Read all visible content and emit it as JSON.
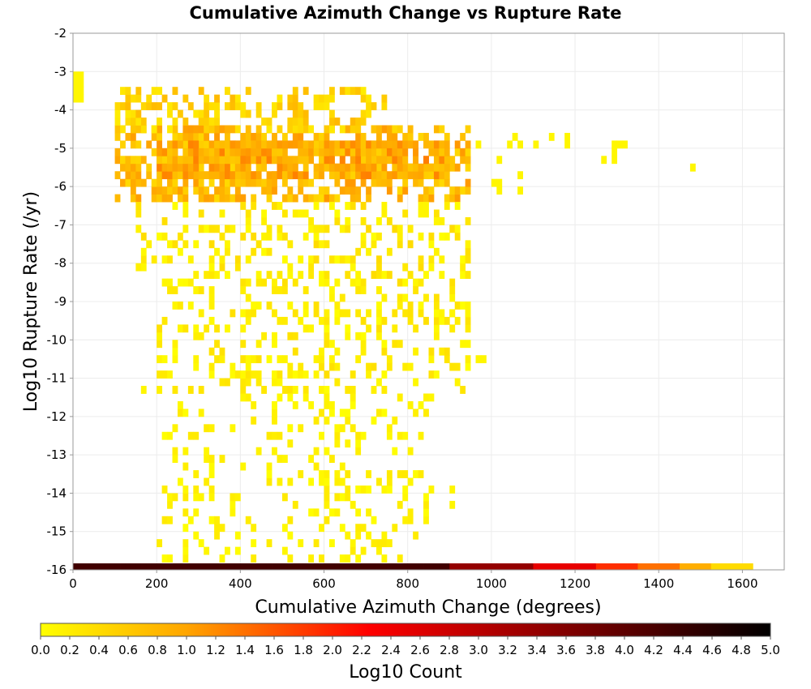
{
  "chart_data": {
    "type": "heatmap",
    "title": "Cumulative Azimuth Change vs Rupture Rate",
    "xlabel": "Cumulative Azimuth Change (degrees)",
    "ylabel": "Log10 Rupture Rate (/yr)",
    "xlim": [
      0,
      1700
    ],
    "ylim": [
      -16,
      -2
    ],
    "xticks": [
      "0",
      "200",
      "400",
      "600",
      "800",
      "1000",
      "1200",
      "1400",
      "1600"
    ],
    "yticks": [
      "-2",
      "-3",
      "-4",
      "-5",
      "-6",
      "-7",
      "-8",
      "-9",
      "-10",
      "-11",
      "-12",
      "-13",
      "-14",
      "-15",
      "-16"
    ],
    "grid": true,
    "colorbar": {
      "label": "Log10 Count",
      "range": [
        0,
        5
      ],
      "ticks": [
        "0.0",
        "0.2",
        "0.4",
        "0.6",
        "0.8",
        "1.0",
        "1.2",
        "1.4",
        "1.6",
        "1.8",
        "2.0",
        "2.2",
        "2.4",
        "2.6",
        "2.8",
        "3.0",
        "3.2",
        "3.4",
        "3.6",
        "3.8",
        "4.0",
        "4.2",
        "4.4",
        "4.6",
        "4.8",
        "5.0"
      ],
      "colors": [
        "#ffff00",
        "#ffa500",
        "#ff0000",
        "#8b0000",
        "#000000"
      ]
    },
    "bin_size": {
      "x": 12.5,
      "y": 0.2
    },
    "floor_row": {
      "y": -16,
      "segments": [
        {
          "x": [
            0,
            900
          ],
          "log10_count": 4.3
        },
        {
          "x": [
            900,
            1100
          ],
          "log10_count": 3.4
        },
        {
          "x": [
            1100,
            1250
          ],
          "log10_count": 2.5
        },
        {
          "x": [
            1250,
            1350
          ],
          "log10_count": 1.9
        },
        {
          "x": [
            1350,
            1450
          ],
          "log10_count": 1.4
        },
        {
          "x": [
            1450,
            1525
          ],
          "log10_count": 0.9
        },
        {
          "x": [
            1525,
            1625
          ],
          "log10_count": 0.4
        }
      ]
    },
    "clusters": [
      {
        "x": [
          100,
          950
        ],
        "y": [
          -6.4,
          -4.4
        ],
        "density": 0.55,
        "level": [
          0.4,
          1.1
        ],
        "seed": 11
      },
      {
        "x": [
          200,
          900
        ],
        "y": [
          -5.8,
          -4.8
        ],
        "density": 0.7,
        "level": [
          0.6,
          1.3
        ],
        "seed": 12
      },
      {
        "x": [
          100,
          750
        ],
        "y": [
          -4.6,
          -3.4
        ],
        "density": 0.4,
        "level": [
          0.2,
          0.8
        ],
        "seed": 13
      },
      {
        "x": [
          150,
          950
        ],
        "y": [
          -8.6,
          -6.4
        ],
        "density": 0.28,
        "level": [
          0.0,
          0.4
        ],
        "seed": 14
      },
      {
        "x": [
          200,
          950
        ],
        "y": [
          -11.4,
          -8.6
        ],
        "density": 0.28,
        "level": [
          0.0,
          0.35
        ],
        "seed": 15
      },
      {
        "x": [
          200,
          850
        ],
        "y": [
          -13.4,
          -11.4
        ],
        "density": 0.18,
        "level": [
          0.0,
          0.25
        ],
        "seed": 16
      },
      {
        "x": [
          200,
          850
        ],
        "y": [
          -15.8,
          -13.4
        ],
        "density": 0.2,
        "level": [
          0.0,
          0.25
        ],
        "seed": 17
      }
    ],
    "points": [
      {
        "x": 0,
        "y": -3.2,
        "log10_count": 0.1
      },
      {
        "x": 0,
        "y": -3.4,
        "log10_count": 0.1
      },
      {
        "x": 0,
        "y": -3.6,
        "log10_count": 0.1
      },
      {
        "x": 0,
        "y": -3.8,
        "log10_count": 0.1
      },
      {
        "x": 12.5,
        "y": -3.2,
        "log10_count": 0.1
      },
      {
        "x": 12.5,
        "y": -3.4,
        "log10_count": 0.1
      },
      {
        "x": 12.5,
        "y": -3.6,
        "log10_count": 0.1
      },
      {
        "x": 12.5,
        "y": -3.8,
        "log10_count": 0.1
      },
      {
        "x": 962.5,
        "y": -5.0,
        "log10_count": 0.1
      },
      {
        "x": 1000,
        "y": -6.0,
        "log10_count": 0.1
      },
      {
        "x": 1012.5,
        "y": -5.4,
        "log10_count": 0.1
      },
      {
        "x": 1012.5,
        "y": -6.0,
        "log10_count": 0.1
      },
      {
        "x": 1012.5,
        "y": -6.2,
        "log10_count": 0.1
      },
      {
        "x": 1037.5,
        "y": -5.0,
        "log10_count": 0.1
      },
      {
        "x": 1050,
        "y": -4.8,
        "log10_count": 0.1
      },
      {
        "x": 1062.5,
        "y": -5.0,
        "log10_count": 0.1
      },
      {
        "x": 1062.5,
        "y": -5.8,
        "log10_count": 0.1
      },
      {
        "x": 1062.5,
        "y": -6.2,
        "log10_count": 0.1
      },
      {
        "x": 1100,
        "y": -5.0,
        "log10_count": 0.1
      },
      {
        "x": 1137.5,
        "y": -4.8,
        "log10_count": 0.1
      },
      {
        "x": 1175,
        "y": -4.8,
        "log10_count": 0.1
      },
      {
        "x": 1175,
        "y": -5.0,
        "log10_count": 0.1
      },
      {
        "x": 1287.5,
        "y": -5.0,
        "log10_count": 0.1
      },
      {
        "x": 1262.5,
        "y": -5.4,
        "log10_count": 0.1
      },
      {
        "x": 1287.5,
        "y": -5.2,
        "log10_count": 0.1
      },
      {
        "x": 1287.5,
        "y": -5.4,
        "log10_count": 0.1
      },
      {
        "x": 1300,
        "y": -5.0,
        "log10_count": 0.1
      },
      {
        "x": 1312.5,
        "y": -5.0,
        "log10_count": 0.1
      },
      {
        "x": 1475,
        "y": -5.6,
        "log10_count": 0.1
      },
      {
        "x": 162.5,
        "y": -11.4,
        "log10_count": 0.1
      },
      {
        "x": 975,
        "y": -10.6,
        "log10_count": 0.1
      },
      {
        "x": 962.5,
        "y": -10.6,
        "log10_count": 0.1
      },
      {
        "x": 900,
        "y": -14.0,
        "log10_count": 0.1
      },
      {
        "x": 900,
        "y": -14.4,
        "log10_count": 0.1
      },
      {
        "x": 875,
        "y": -9.4,
        "log10_count": 0.1
      },
      {
        "x": 900,
        "y": -9.4,
        "log10_count": 0.1
      },
      {
        "x": 937.5,
        "y": -9.2,
        "log10_count": 0.1
      },
      {
        "x": 937.5,
        "y": -9.4,
        "log10_count": 0.1
      },
      {
        "x": 862.5,
        "y": -7.0,
        "log10_count": 0.1
      },
      {
        "x": 850,
        "y": -11.6,
        "log10_count": 0.1
      },
      {
        "x": 850,
        "y": -14.0,
        "log10_count": 0.1
      }
    ]
  }
}
